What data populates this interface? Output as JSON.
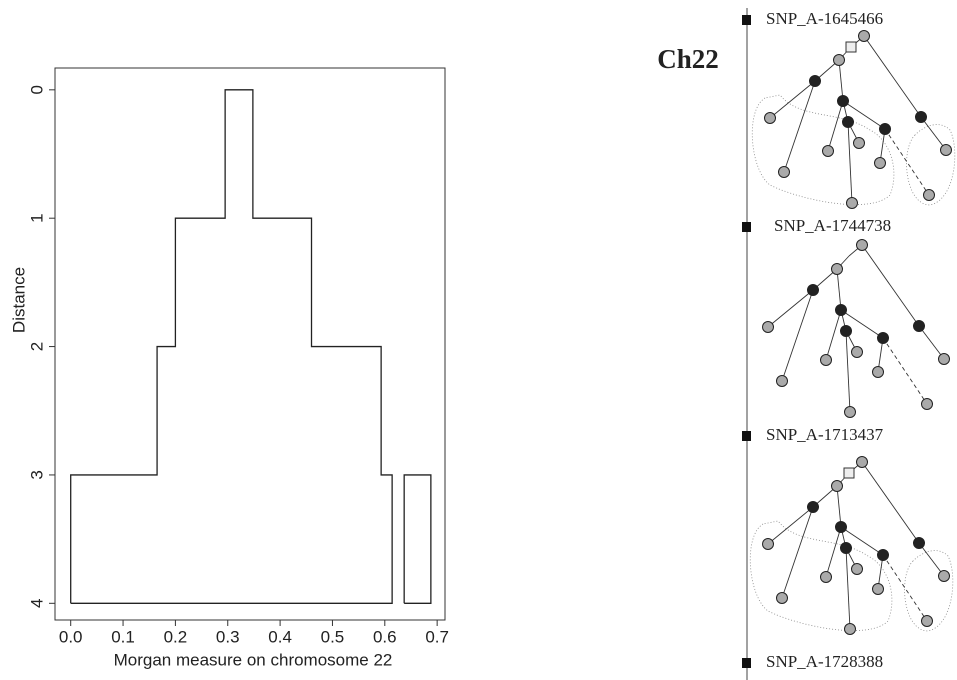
{
  "chart_data": {
    "type": "line",
    "y_label": "Distance",
    "x_label": "Morgan measure  on chromosome 22",
    "series": [
      {
        "color": "#222222",
        "x": [
          0,
          0,
          0.165,
          0.165,
          0.2,
          0.2,
          0.295,
          0.295,
          0.348,
          0.348,
          0.46,
          0.46,
          0.593,
          0.593,
          0.614,
          0.614,
          0
        ],
        "values": [
          4,
          3,
          3,
          2,
          2,
          1,
          1,
          0,
          0,
          1,
          1,
          2,
          2,
          3,
          3,
          4,
          4
        ]
      },
      {
        "color": "#222222",
        "x": [
          0.637,
          0.637,
          0.688,
          0.688,
          0.637
        ],
        "values": [
          4,
          3,
          3,
          4,
          4
        ]
      }
    ],
    "xlim": [
      -0.03,
      0.715
    ],
    "ylim": [
      4.13,
      -0.17
    ],
    "xticks": [
      {
        "value": 0,
        "label": "0.0"
      },
      0.1,
      0.2,
      0.3,
      0.4,
      0.5,
      0.6,
      0.7
    ],
    "yticks": [
      0,
      1,
      2,
      3,
      4
    ]
  },
  "diagram": {
    "chromosome": "Ch22",
    "snps": [
      "SNP_A-1645466",
      "SNP_A-1744738",
      "SNP_A-1713437",
      "SNP_A-1728388"
    ]
  }
}
